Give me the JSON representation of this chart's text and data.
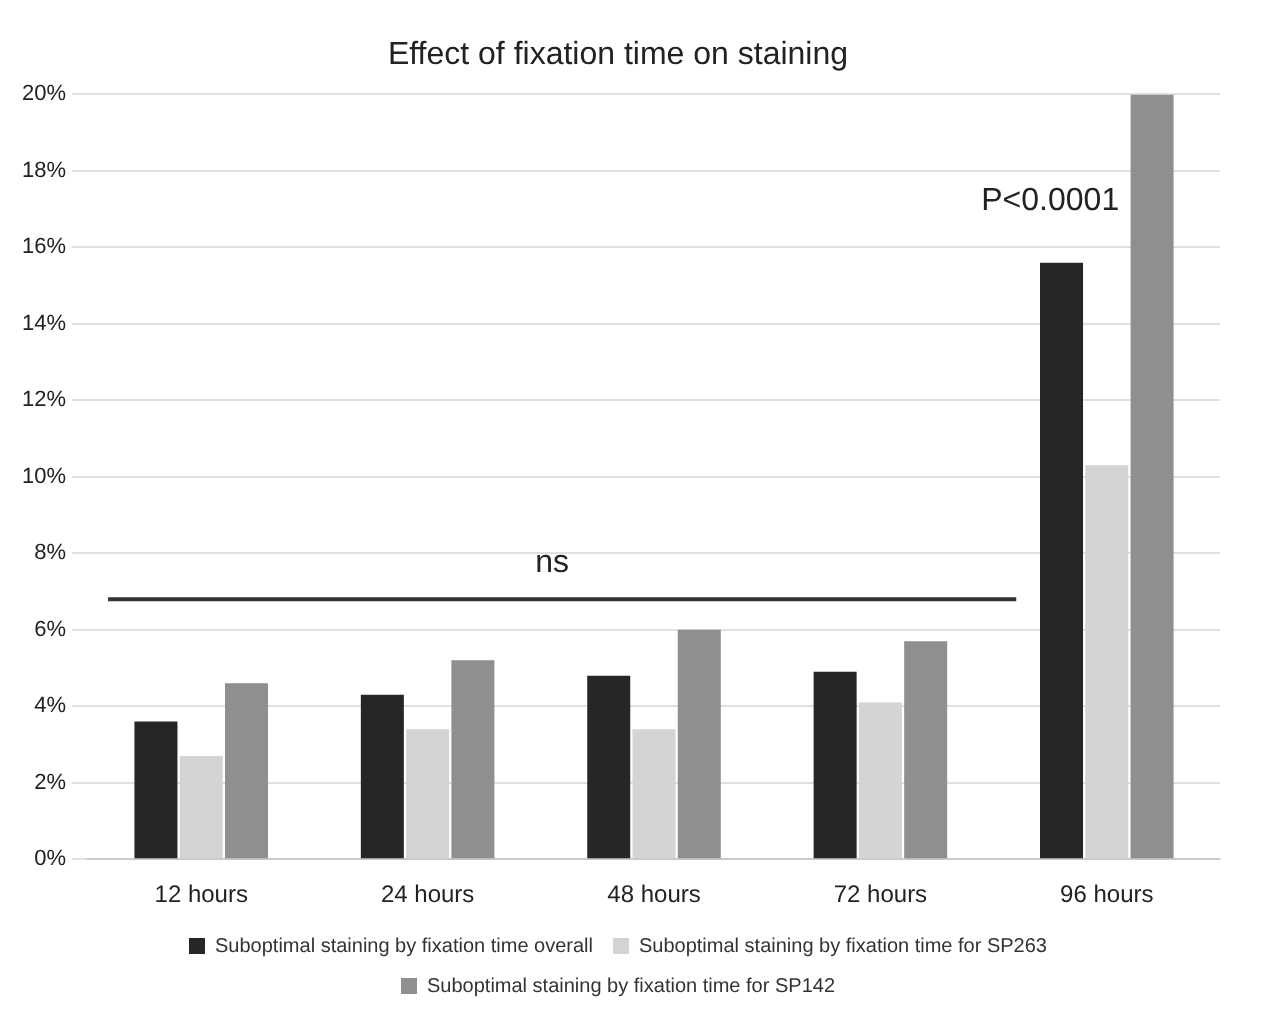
{
  "chart_data": {
    "type": "bar",
    "title": "Effect of fixation time on staining",
    "categories": [
      "12 hours",
      "24 hours",
      "48 hours",
      "72 hours",
      "96 hours"
    ],
    "series": [
      {
        "name": "Suboptimal staining by fixation time overall",
        "color": "#262626",
        "values": [
          3.6,
          4.3,
          4.8,
          4.9,
          15.6
        ]
      },
      {
        "name": "Suboptimal staining by fixation time for SP263",
        "color": "#d4d4d4",
        "values": [
          2.7,
          3.4,
          3.4,
          4.1,
          10.3
        ]
      },
      {
        "name": "Suboptimal staining by fixation time for SP142",
        "color": "#8f8f8f",
        "values": [
          4.6,
          5.2,
          6.0,
          5.7,
          20.0
        ]
      }
    ],
    "ylim": [
      0,
      20
    ],
    "yticks": [
      {
        "value": 0,
        "label": "0%"
      },
      {
        "value": 2,
        "label": "2%"
      },
      {
        "value": 4,
        "label": "4%"
      },
      {
        "value": 6,
        "label": "6%"
      },
      {
        "value": 8,
        "label": "8%"
      },
      {
        "value": 10,
        "label": "10%"
      },
      {
        "value": 12,
        "label": "12%"
      },
      {
        "value": 14,
        "label": "14%"
      },
      {
        "value": 16,
        "label": "16%"
      },
      {
        "value": 18,
        "label": "18%"
      },
      {
        "value": 20,
        "label": "20%"
      }
    ],
    "ref_lines": [
      {
        "axis": "y",
        "value": 6.8,
        "label": "ns",
        "color": "#333333",
        "line_style": "solid"
      }
    ],
    "annotations": [
      "P<0.0001"
    ],
    "grid": "y",
    "legend": "bottom"
  }
}
